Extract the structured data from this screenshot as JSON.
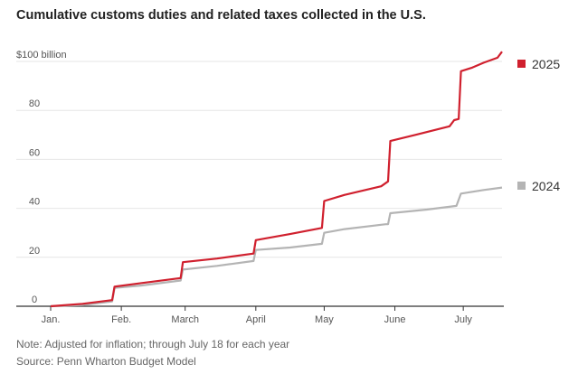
{
  "title": "Cumulative customs duties and related taxes collected in the U.S.",
  "note": "Note: Adjusted for inflation; through July 18 for each year",
  "source": "Source: Penn Wharton Budget Model",
  "colors": {
    "s2025": "#d0202e",
    "s2024": "#b4b4b4",
    "grid": "#e6e6e6",
    "axis": "#333333"
  },
  "chart_data": {
    "type": "line",
    "title": "Cumulative customs duties and related taxes collected in the U.S.",
    "xlabel": "",
    "ylabel": "",
    "x_axis": {
      "type": "date",
      "range": [
        "2025-01-01",
        "2025-07-18"
      ],
      "ticks": [
        {
          "date": "2025-01-01",
          "label": "Jan."
        },
        {
          "date": "2025-02-01",
          "label": "Feb."
        },
        {
          "date": "2025-03-01",
          "label": "March"
        },
        {
          "date": "2025-04-01",
          "label": "April"
        },
        {
          "date": "2025-05-01",
          "label": "May"
        },
        {
          "date": "2025-06-01",
          "label": "June"
        },
        {
          "date": "2025-07-01",
          "label": "July"
        }
      ]
    },
    "y_axis": {
      "range": [
        0,
        100
      ],
      "ticks": [
        {
          "value": 0,
          "label": "0"
        },
        {
          "value": 20,
          "label": "20"
        },
        {
          "value": 40,
          "label": "40"
        },
        {
          "value": 60,
          "label": "60"
        },
        {
          "value": 80,
          "label": "80"
        },
        {
          "value": 100,
          "label": "$100 billion"
        }
      ]
    },
    "grid": true,
    "legend": "right, at line ends",
    "series": [
      {
        "name": "2025",
        "color": "#d0202e",
        "points": [
          [
            "2025-01-01",
            0
          ],
          [
            "2025-01-15",
            1
          ],
          [
            "2025-01-28",
            2.5
          ],
          [
            "2025-01-29",
            8
          ],
          [
            "2025-02-10",
            9.5
          ],
          [
            "2025-02-27",
            11.5
          ],
          [
            "2025-02-28",
            18
          ],
          [
            "2025-03-15",
            19.5
          ],
          [
            "2025-03-31",
            21.5
          ],
          [
            "2025-04-01",
            27
          ],
          [
            "2025-04-16",
            29.5
          ],
          [
            "2025-04-30",
            32
          ],
          [
            "2025-05-01",
            43
          ],
          [
            "2025-05-10",
            45.5
          ],
          [
            "2025-05-26",
            49
          ],
          [
            "2025-05-29",
            51
          ],
          [
            "2025-05-30",
            67.5
          ],
          [
            "2025-06-10",
            70
          ],
          [
            "2025-06-25",
            73.5
          ],
          [
            "2025-06-27",
            76
          ],
          [
            "2025-06-29",
            76.5
          ],
          [
            "2025-06-30",
            96
          ],
          [
            "2025-07-05",
            97.5
          ],
          [
            "2025-07-10",
            99.5
          ],
          [
            "2025-07-16",
            101.5
          ],
          [
            "2025-07-18",
            104
          ]
        ]
      },
      {
        "name": "2024",
        "color": "#b4b4b4",
        "points": [
          [
            "2025-01-01",
            0
          ],
          [
            "2025-01-15",
            0.5
          ],
          [
            "2025-01-28",
            2
          ],
          [
            "2025-01-29",
            7.5
          ],
          [
            "2025-02-10",
            8.5
          ],
          [
            "2025-02-27",
            10.5
          ],
          [
            "2025-02-28",
            15
          ],
          [
            "2025-03-15",
            16.5
          ],
          [
            "2025-03-31",
            18.5
          ],
          [
            "2025-04-01",
            23
          ],
          [
            "2025-04-16",
            24
          ],
          [
            "2025-04-30",
            25.5
          ],
          [
            "2025-05-01",
            30
          ],
          [
            "2025-05-10",
            31.5
          ],
          [
            "2025-05-28",
            33.5
          ],
          [
            "2025-05-29",
            33.5
          ],
          [
            "2025-05-30",
            38
          ],
          [
            "2025-06-15",
            39.5
          ],
          [
            "2025-06-28",
            41
          ],
          [
            "2025-06-30",
            46
          ],
          [
            "2025-07-10",
            47.5
          ],
          [
            "2025-07-18",
            48.5
          ]
        ]
      }
    ]
  }
}
